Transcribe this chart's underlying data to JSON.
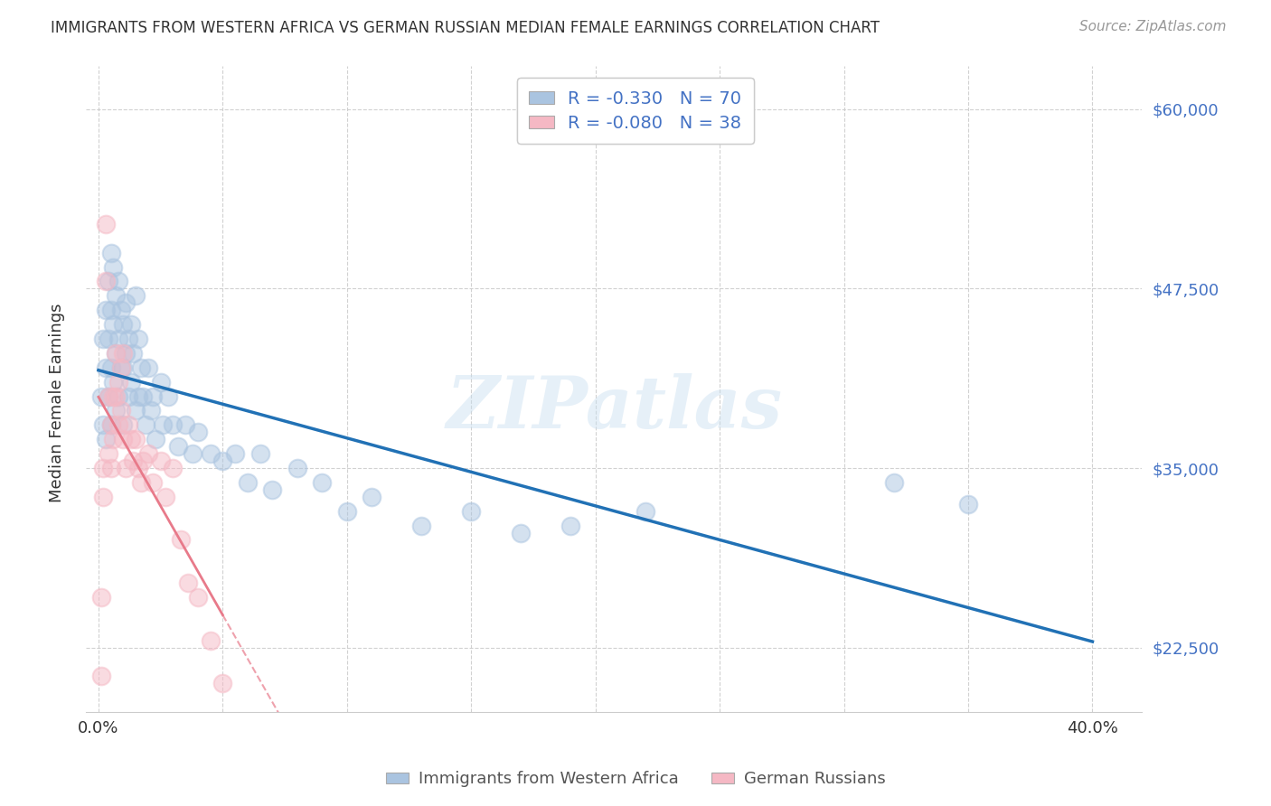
{
  "title": "IMMIGRANTS FROM WESTERN AFRICA VS GERMAN RUSSIAN MEDIAN FEMALE EARNINGS CORRELATION CHART",
  "source": "Source: ZipAtlas.com",
  "ylabel": "Median Female Earnings",
  "ytick_labels": [
    "$22,500",
    "$35,000",
    "$47,500",
    "$60,000"
  ],
  "ytick_values": [
    22500,
    35000,
    47500,
    60000
  ],
  "ylim": [
    18000,
    63000
  ],
  "xlim": [
    -0.005,
    0.42
  ],
  "legend_blue_r": "-0.330",
  "legend_blue_n": "70",
  "legend_pink_r": "-0.080",
  "legend_pink_n": "38",
  "legend_label_blue": "Immigrants from Western Africa",
  "legend_label_pink": "German Russians",
  "blue_color": "#aac4e0",
  "pink_color": "#f5b8c4",
  "blue_line_color": "#2171b5",
  "pink_line_color": "#e87a8a",
  "background_color": "#ffffff",
  "watermark": "ZIPatlas",
  "blue_scatter_x": [
    0.001,
    0.002,
    0.002,
    0.003,
    0.003,
    0.003,
    0.004,
    0.004,
    0.004,
    0.005,
    0.005,
    0.005,
    0.005,
    0.006,
    0.006,
    0.006,
    0.007,
    0.007,
    0.007,
    0.008,
    0.008,
    0.008,
    0.009,
    0.009,
    0.01,
    0.01,
    0.01,
    0.011,
    0.011,
    0.012,
    0.012,
    0.013,
    0.013,
    0.014,
    0.015,
    0.015,
    0.016,
    0.016,
    0.017,
    0.018,
    0.019,
    0.02,
    0.021,
    0.022,
    0.023,
    0.025,
    0.026,
    0.028,
    0.03,
    0.032,
    0.035,
    0.038,
    0.04,
    0.045,
    0.05,
    0.055,
    0.06,
    0.065,
    0.07,
    0.08,
    0.09,
    0.1,
    0.11,
    0.13,
    0.15,
    0.17,
    0.19,
    0.22,
    0.32,
    0.35
  ],
  "blue_scatter_y": [
    40000,
    44000,
    38000,
    46000,
    42000,
    37000,
    48000,
    44000,
    40000,
    50000,
    46000,
    42000,
    38000,
    49000,
    45000,
    41000,
    47000,
    43000,
    39000,
    48000,
    44000,
    40000,
    46000,
    42000,
    45000,
    42000,
    38000,
    46500,
    43000,
    44000,
    40000,
    45000,
    41000,
    43000,
    47000,
    39000,
    44000,
    40000,
    42000,
    40000,
    38000,
    42000,
    39000,
    40000,
    37000,
    41000,
    38000,
    40000,
    38000,
    36500,
    38000,
    36000,
    37500,
    36000,
    35500,
    36000,
    34000,
    36000,
    33500,
    35000,
    34000,
    32000,
    33000,
    31000,
    32000,
    30500,
    31000,
    32000,
    34000,
    32500
  ],
  "pink_scatter_x": [
    0.001,
    0.001,
    0.002,
    0.002,
    0.003,
    0.003,
    0.004,
    0.004,
    0.005,
    0.005,
    0.006,
    0.006,
    0.007,
    0.007,
    0.008,
    0.008,
    0.009,
    0.009,
    0.01,
    0.01,
    0.011,
    0.012,
    0.013,
    0.014,
    0.015,
    0.016,
    0.017,
    0.018,
    0.02,
    0.022,
    0.025,
    0.027,
    0.03,
    0.033,
    0.036,
    0.04,
    0.045,
    0.05
  ],
  "pink_scatter_y": [
    20500,
    26000,
    35000,
    33000,
    52000,
    48000,
    40000,
    36000,
    38000,
    35000,
    40000,
    37000,
    43000,
    40000,
    41000,
    38000,
    42000,
    39000,
    43000,
    37000,
    35000,
    38000,
    37000,
    35500,
    37000,
    35000,
    34000,
    35500,
    36000,
    34000,
    35500,
    33000,
    35000,
    30000,
    27000,
    26000,
    23000,
    20000
  ]
}
